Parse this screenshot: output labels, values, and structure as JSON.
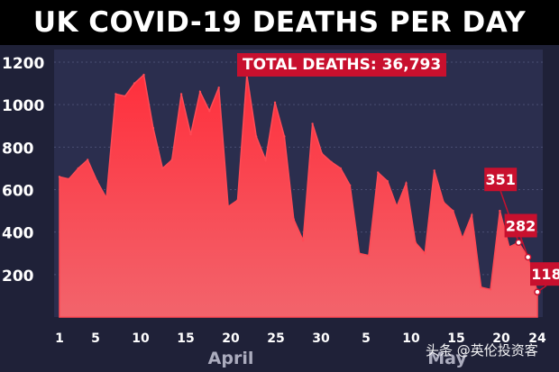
{
  "title": "UK COVID-19 DEATHS PER DAY",
  "total_badge": "TOTAL DEATHS: 36,793",
  "watermark": "头条 @英伦投资客",
  "colors": {
    "fill": "#e8343f",
    "badge": "#c8102e",
    "background": "#1f2138",
    "title_bar": "#000000",
    "axis_text": "#ffffff",
    "month_text": "#cfcfe0"
  },
  "chart_data": {
    "type": "area",
    "title": "UK COVID-19 DEATHS PER DAY",
    "xlabel": "",
    "ylabel": "",
    "ylim": [
      0,
      1250
    ],
    "yticks": [
      200,
      400,
      600,
      800,
      1000,
      1200
    ],
    "xticks": [
      {
        "day": 1,
        "label": "1"
      },
      {
        "day": 5,
        "label": "5"
      },
      {
        "day": 10,
        "label": "10"
      },
      {
        "day": 15,
        "label": "15"
      },
      {
        "day": 20,
        "label": "20"
      },
      {
        "day": 25,
        "label": "25"
      },
      {
        "day": 30,
        "label": "30"
      },
      {
        "day": 35,
        "label": "5"
      },
      {
        "day": 40,
        "label": "10"
      },
      {
        "day": 45,
        "label": "15"
      },
      {
        "day": 50,
        "label": "20"
      },
      {
        "day": 54,
        "label": "24"
      }
    ],
    "month_labels": [
      {
        "day": 20,
        "label": "April"
      },
      {
        "day": 44,
        "label": "May"
      }
    ],
    "x_start_label": "April 1",
    "series": [
      {
        "values": [
          660,
          650,
          700,
          740,
          640,
          560,
          1050,
          1040,
          1100,
          1140,
          890,
          700,
          740,
          1050,
          860,
          1060,
          970,
          1080,
          520,
          550,
          1140,
          850,
          740,
          1010,
          850,
          460,
          360,
          910,
          770,
          730,
          700,
          620,
          300,
          290,
          680,
          640,
          520,
          630,
          350,
          300,
          690,
          540,
          500,
          370,
          480,
          140,
          130,
          500,
          330,
          351,
          282,
          118
        ]
      }
    ],
    "annotations": [
      {
        "label": "351",
        "index": 49,
        "value": 351
      },
      {
        "label": "282",
        "index": 50,
        "value": 282
      },
      {
        "label": "118",
        "index": 51,
        "value": 118
      }
    ]
  }
}
